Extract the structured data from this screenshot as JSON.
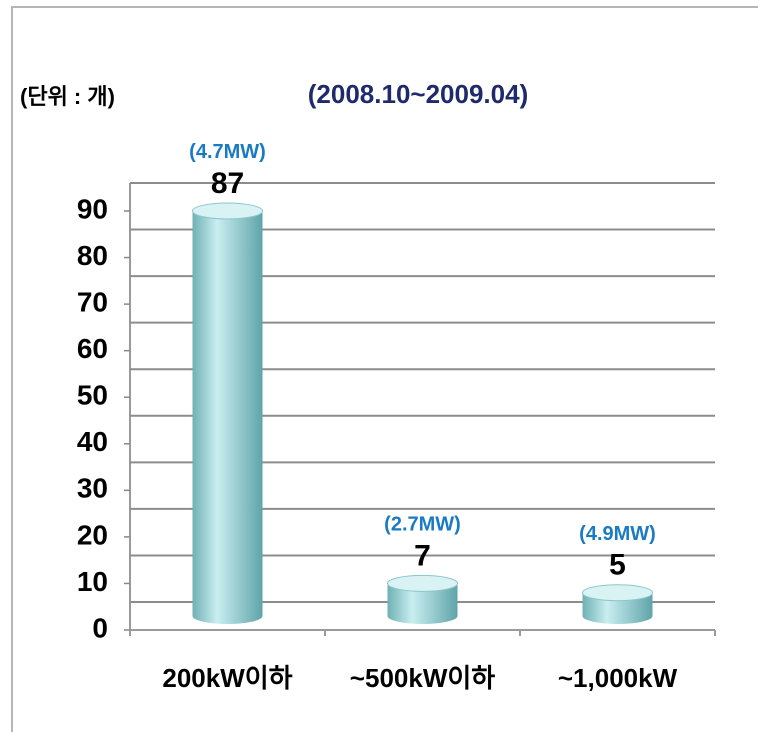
{
  "chart_data": {
    "type": "bar3d",
    "title": "(2008.10~2009.04)",
    "unit_label": "(단위 : 개)",
    "categories": [
      "200kW이하",
      "~500kW이하",
      "~1,000kW"
    ],
    "values": [
      87,
      7,
      5
    ],
    "annotations": [
      "(4.7MW)",
      "(2.7MW)",
      "(4.9MW)"
    ],
    "color": "#9fd3d6",
    "ylim": [
      0,
      90
    ],
    "yticks": [
      0,
      10,
      20,
      30,
      40,
      50,
      60,
      70,
      80,
      90
    ],
    "grid": true
  }
}
